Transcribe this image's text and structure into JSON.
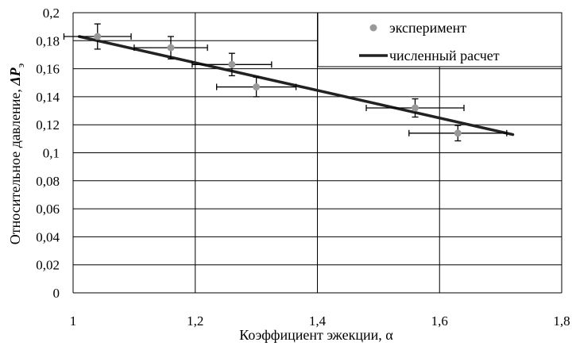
{
  "chart_data": {
    "type": "scatter",
    "xlabel": "Коэффициент эжекции, α",
    "ylabel_main": "Относительное давление, ",
    "ylabel_symbol": "ΔP",
    "ylabel_subscript": "э",
    "xlim": [
      1,
      1.8
    ],
    "ylim": [
      0,
      0.2
    ],
    "x_ticks": [
      1,
      1.2,
      1.4,
      1.6,
      1.8
    ],
    "x_tick_labels": [
      "1",
      "1,2",
      "1,4",
      "1,6",
      "1,8"
    ],
    "y_ticks": [
      0,
      0.02,
      0.04,
      0.06,
      0.08,
      0.1,
      0.12,
      0.14,
      0.16,
      0.18,
      0.2
    ],
    "y_tick_labels": [
      "0",
      "0,02",
      "0,04",
      "0,06",
      "0,08",
      "0,1",
      "0,12",
      "0,14",
      "0,16",
      "0,18",
      "0,2"
    ],
    "grid": true,
    "legend_position": "top-right",
    "series": [
      {
        "name": "эксперимент",
        "kind": "points",
        "color": "#999999",
        "points": [
          {
            "x": 1.04,
            "y": 0.183,
            "xerr": 0.055,
            "yerr": 0.009
          },
          {
            "x": 1.16,
            "y": 0.175,
            "xerr": 0.06,
            "yerr": 0.008
          },
          {
            "x": 1.26,
            "y": 0.163,
            "xerr": 0.065,
            "yerr": 0.008
          },
          {
            "x": 1.3,
            "y": 0.147,
            "xerr": 0.065,
            "yerr": 0.007
          },
          {
            "x": 1.56,
            "y": 0.132,
            "xerr": 0.08,
            "yerr": 0.0065
          },
          {
            "x": 1.63,
            "y": 0.114,
            "xerr": 0.08,
            "yerr": 0.0055
          }
        ]
      },
      {
        "name": "численный расчет",
        "kind": "line",
        "color": "#222222",
        "x": [
          1.01,
          1.72
        ],
        "y": [
          0.183,
          0.113
        ]
      }
    ]
  }
}
